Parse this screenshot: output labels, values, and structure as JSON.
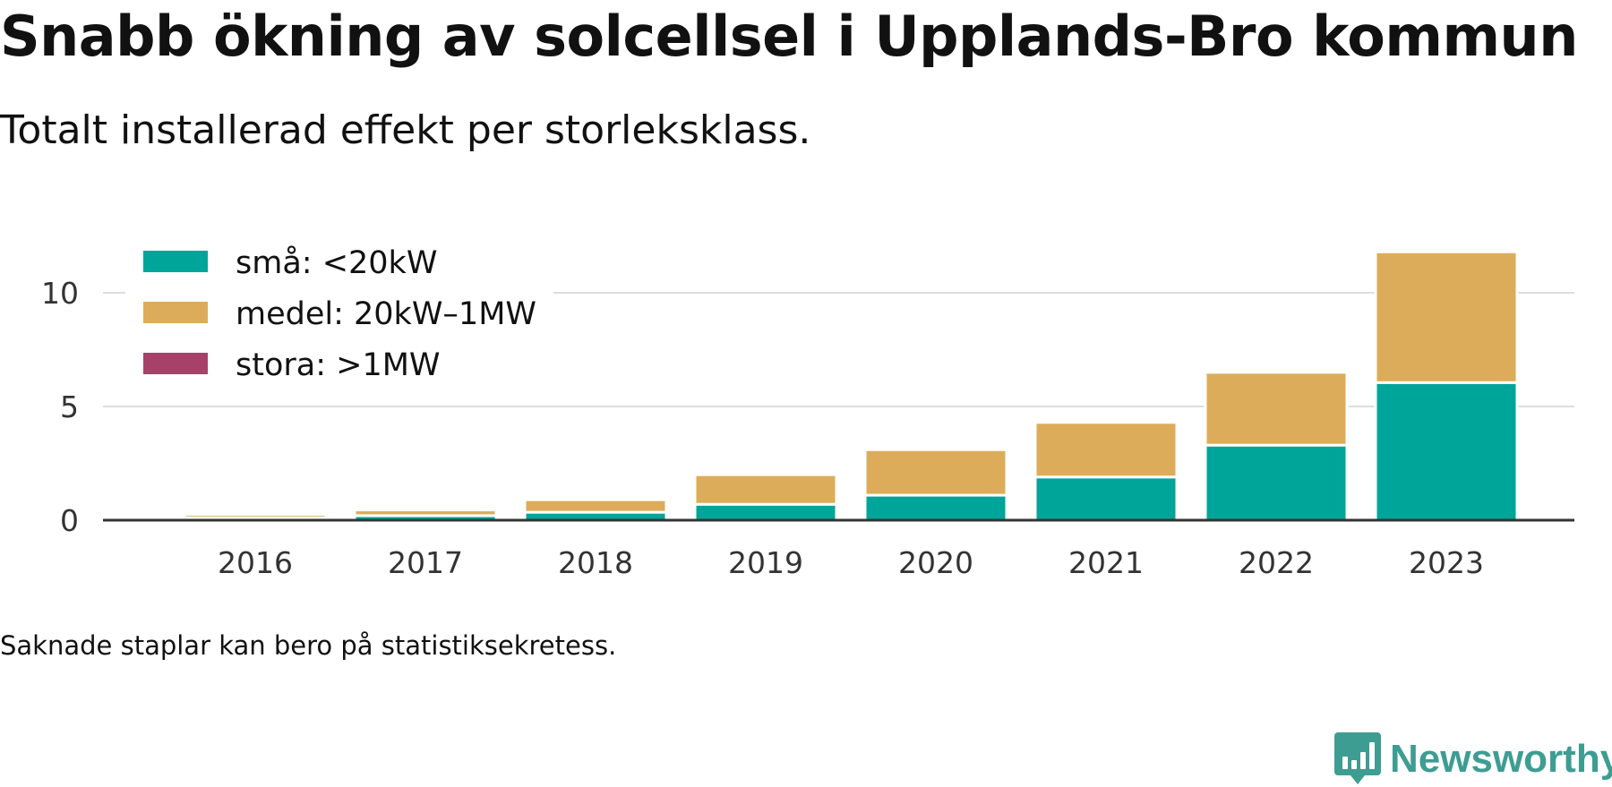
{
  "header": {
    "title": "Snabb ökning av solcellsel i Upplands-Bro kommun",
    "subtitle": "Totalt installerad effekt per storleksklass."
  },
  "footer": {
    "note": "Saknade staplar kan bero på statistiksekretess.",
    "brand": "Newsworthy",
    "brand_icon": "bar-chart-speech-bubble-icon"
  },
  "colors": {
    "sma": "#00a599",
    "medel": "#dcac5a",
    "stora": "#a7416a",
    "grid": "#dddddd",
    "axis": "#333333",
    "brand": "#3d9d92"
  },
  "chart_data": {
    "type": "bar",
    "stacked": true,
    "categories": [
      "2016",
      "2017",
      "2018",
      "2019",
      "2020",
      "2021",
      "2022",
      "2023"
    ],
    "series": [
      {
        "name": "små: <20kW",
        "color": "#00a599",
        "values": [
          0.1,
          0.2,
          0.35,
          0.7,
          1.1,
          1.9,
          3.3,
          6.05
        ]
      },
      {
        "name": "medel: 20kW–1MW",
        "color": "#dcac5a",
        "values": [
          0.15,
          0.25,
          0.55,
          1.3,
          2.0,
          2.4,
          3.2,
          5.75
        ]
      },
      {
        "name": "stora: >1MW",
        "color": "#a7416a",
        "values": [
          0,
          0,
          0,
          0,
          0,
          0,
          0,
          0
        ]
      }
    ],
    "y_ticks": [
      0,
      5,
      10
    ],
    "ylim": [
      0,
      12.5
    ],
    "grid": true,
    "legend_position": "top-left",
    "xlabel": "",
    "ylabel": ""
  }
}
